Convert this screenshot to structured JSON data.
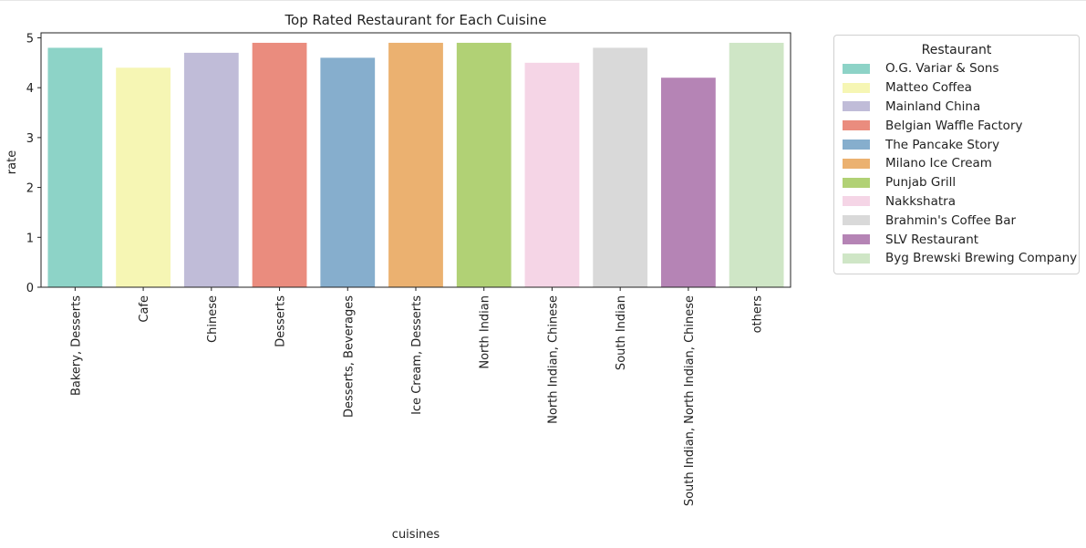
{
  "chart_data": {
    "type": "bar",
    "title": "Top Rated Restaurant for Each Cuisine",
    "xlabel": "cuisines",
    "ylabel": "rate",
    "ylim": [
      0,
      5.1
    ],
    "yticks": [
      "0",
      "1",
      "2",
      "3",
      "4",
      "5"
    ],
    "grid": false,
    "legend_title": "Restaurant",
    "legend_position": "outside-right",
    "categories": [
      "Bakery, Desserts",
      "Cafe",
      "Chinese",
      "Desserts",
      "Desserts, Beverages",
      "Ice Cream, Desserts",
      "North Indian",
      "North Indian, Chinese",
      "South Indian",
      "South Indian, North Indian, Chinese",
      "others"
    ],
    "values": [
      4.8,
      4.4,
      4.7,
      4.9,
      4.6,
      4.9,
      4.9,
      4.5,
      4.8,
      4.2,
      4.9
    ],
    "restaurants": [
      "O.G. Variar & Sons",
      "Matteo Coffea",
      "Mainland China",
      "Belgian Waffle Factory",
      "The Pancake Story",
      "Milano Ice Cream",
      "Punjab Grill",
      "Nakkshatra",
      "Brahmin's Coffee Bar",
      "SLV Restaurant",
      "Byg Brewski Brewing Company"
    ],
    "colors": [
      "#8dd3c7",
      "#f6f6b4",
      "#c0bcd8",
      "#ea8c7e",
      "#86aecd",
      "#ebb170",
      "#b1d175",
      "#f5d5e6",
      "#d9d9d9",
      "#b584b5",
      "#cfe6c6"
    ]
  }
}
